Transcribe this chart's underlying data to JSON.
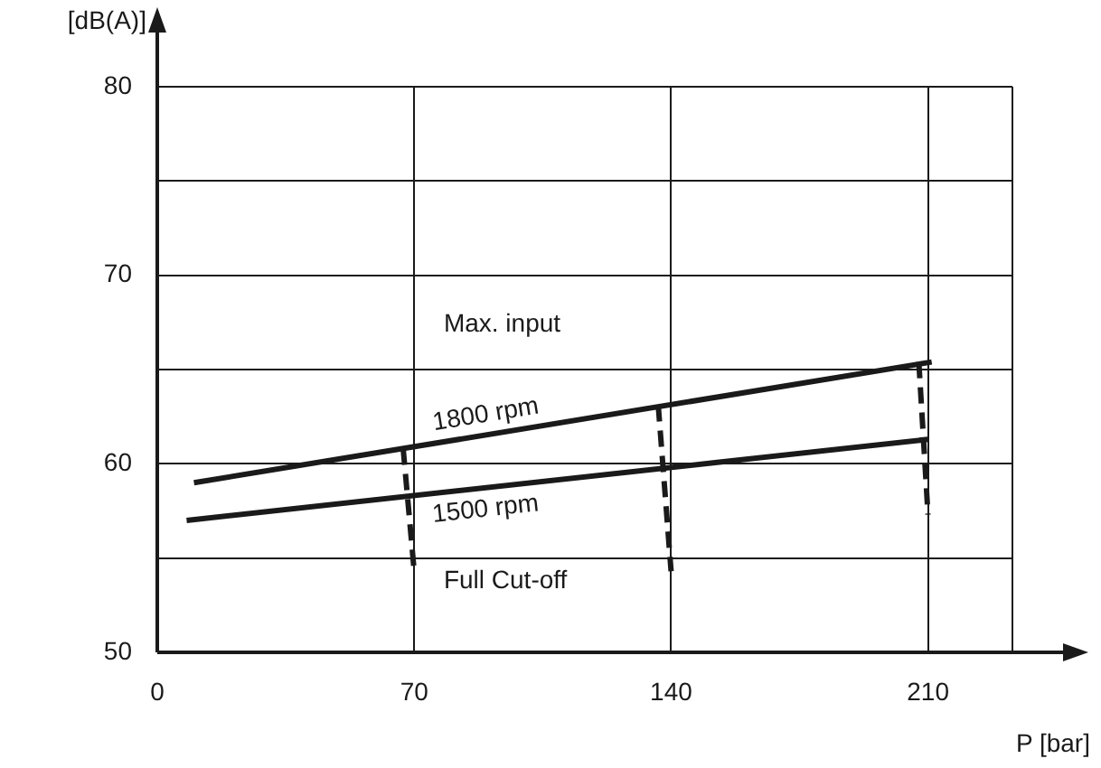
{
  "chart_data": {
    "type": "line",
    "xlabel": "P [bar]",
    "ylabel": "[dB(A)]",
    "xlim": [
      0,
      233
    ],
    "ylim": [
      50,
      80
    ],
    "xticks": [
      0,
      70,
      140,
      210,
      {
        "value": 233,
        "label": null
      }
    ],
    "yticks": [
      50,
      {
        "value": 55,
        "label": null
      },
      60,
      {
        "value": 65,
        "label": null
      },
      70,
      {
        "value": 75,
        "label": null
      },
      80
    ],
    "grid": true,
    "legend": false,
    "marker": "none",
    "series": [
      {
        "name": "1800 rpm",
        "color": "#1a1a1a",
        "x": [
          10,
          211
        ],
        "values": [
          59,
          65.4
        ],
        "line_style": "solid"
      },
      {
        "name": "1500 rpm",
        "color": "#1a1a1a",
        "x": [
          8,
          210
        ],
        "values": [
          57,
          61.3
        ],
        "line_style": "solid"
      },
      {
        "color": "#1a1a1a",
        "x": [
          67,
          70
        ],
        "values": [
          60.8,
          54.3
        ],
        "line_style": "dashed"
      },
      {
        "color": "#1a1a1a",
        "x": [
          136.5,
          140
        ],
        "values": [
          63.1,
          54.3
        ],
        "line_style": "dashed"
      },
      {
        "color": "#1a1a1a",
        "x": [
          207.5,
          210
        ],
        "values": [
          65.4,
          57.3
        ],
        "line_style": "dashed"
      }
    ],
    "annotations": [
      "Max. input",
      "Full Cut-off"
    ]
  }
}
